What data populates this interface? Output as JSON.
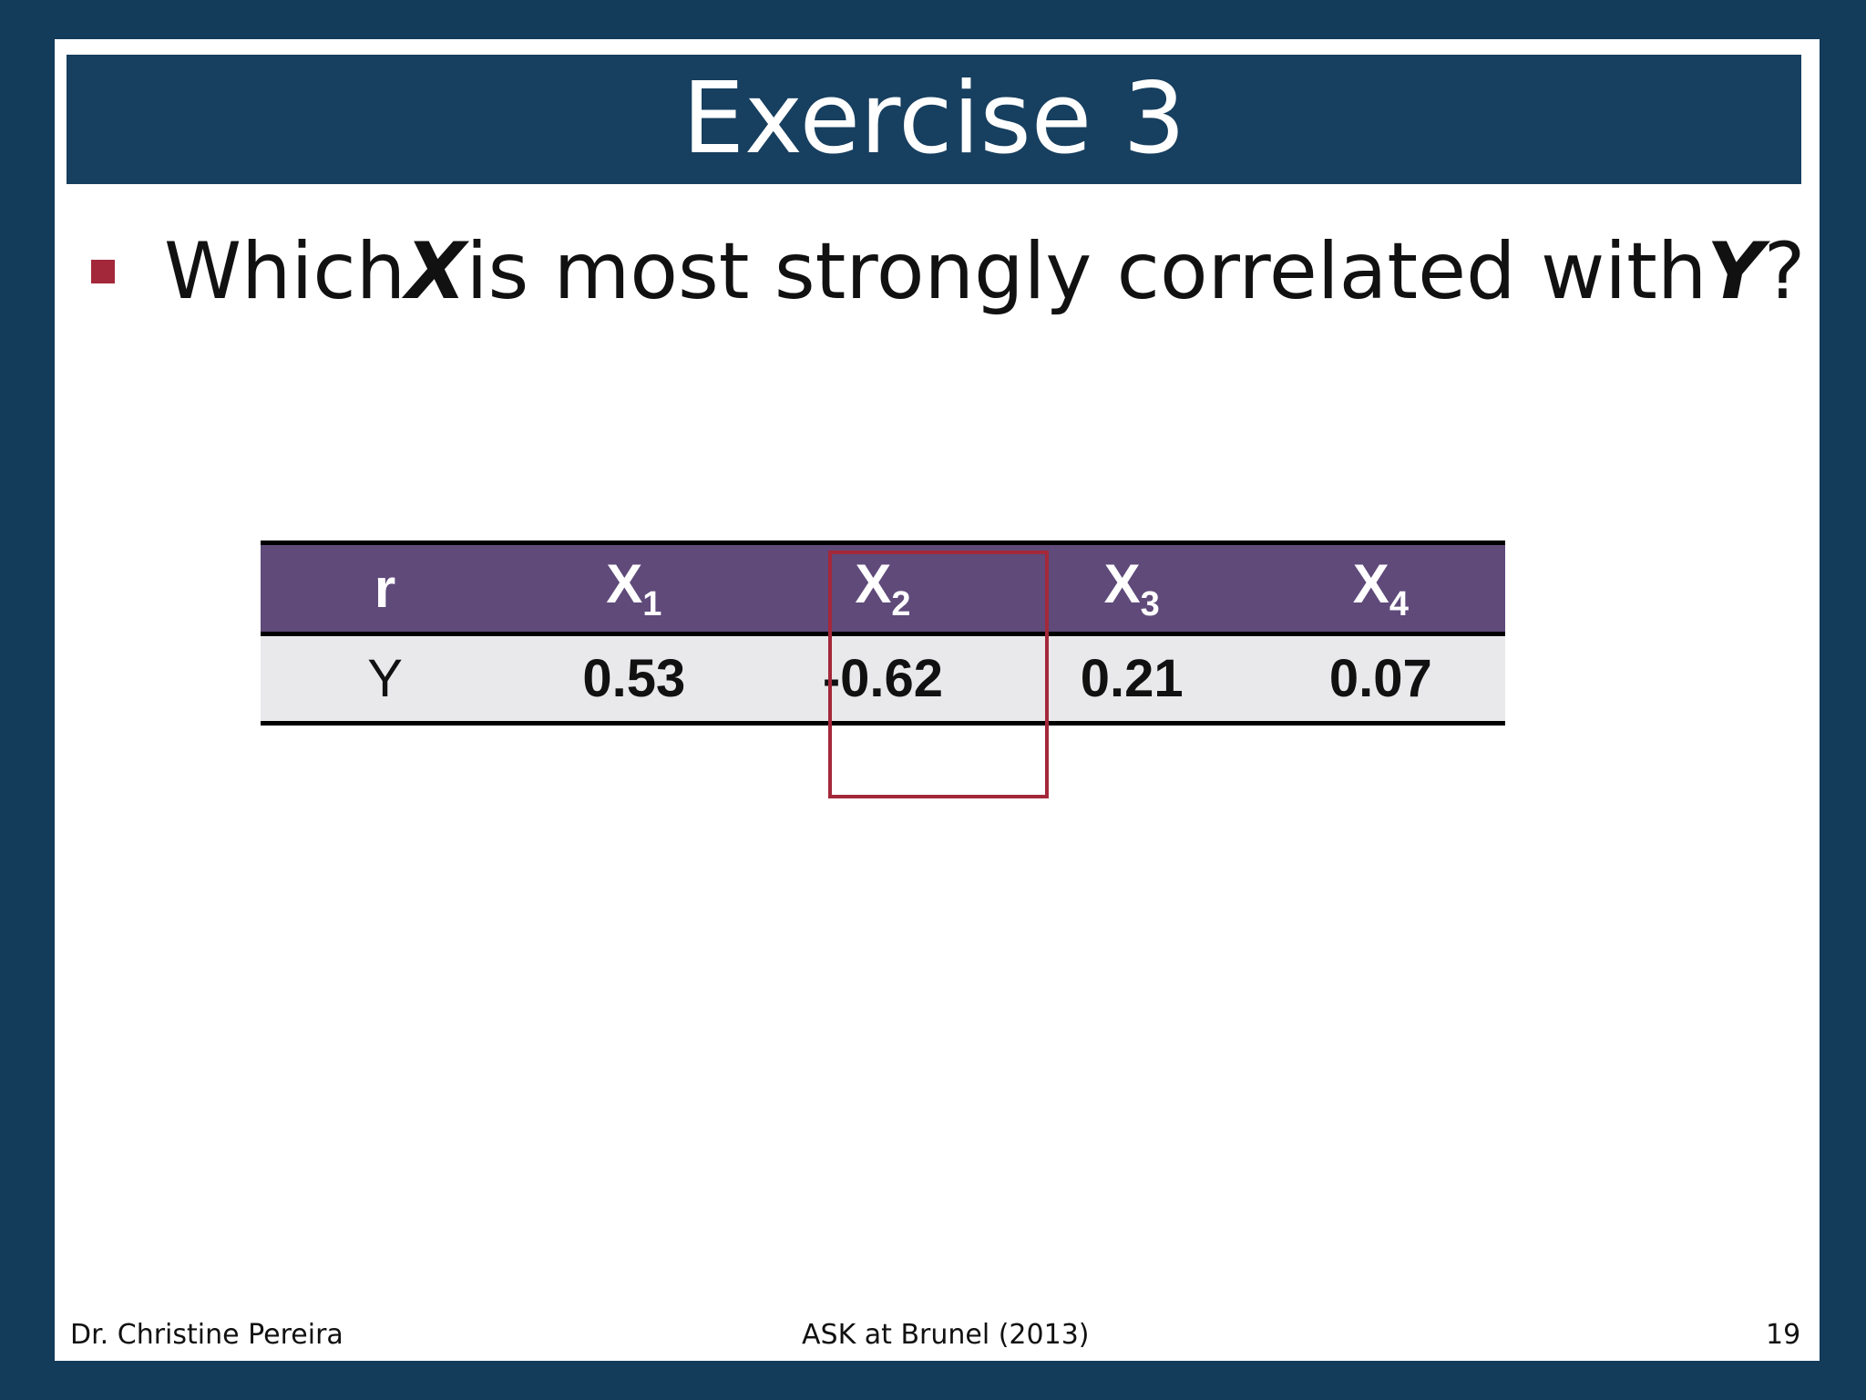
{
  "slide": {
    "title": "Exercise 3",
    "bullet": {
      "part1": "Which ",
      "var1": "X",
      "part2": " is most strongly correlated with ",
      "var2": "Y",
      "part3": "?"
    },
    "table": {
      "header": [
        {
          "base": "r",
          "sub": ""
        },
        {
          "base": "X",
          "sub": "1"
        },
        {
          "base": "X",
          "sub": "2"
        },
        {
          "base": "X",
          "sub": "3"
        },
        {
          "base": "X",
          "sub": "4"
        }
      ],
      "row": {
        "label": "Y",
        "values": [
          "0.53",
          "-0.62",
          "0.21",
          "0.07"
        ]
      }
    },
    "footer": {
      "author": "Dr. Christine Pereira",
      "event": "ASK at Brunel (2013)",
      "page_number": "19"
    }
  },
  "colors": {
    "background": "#133b5a",
    "title_bar": "#173f5f",
    "table_header": "#5f4a7a",
    "table_row": "#e9e8ea",
    "accent_red": "#a3283a"
  }
}
